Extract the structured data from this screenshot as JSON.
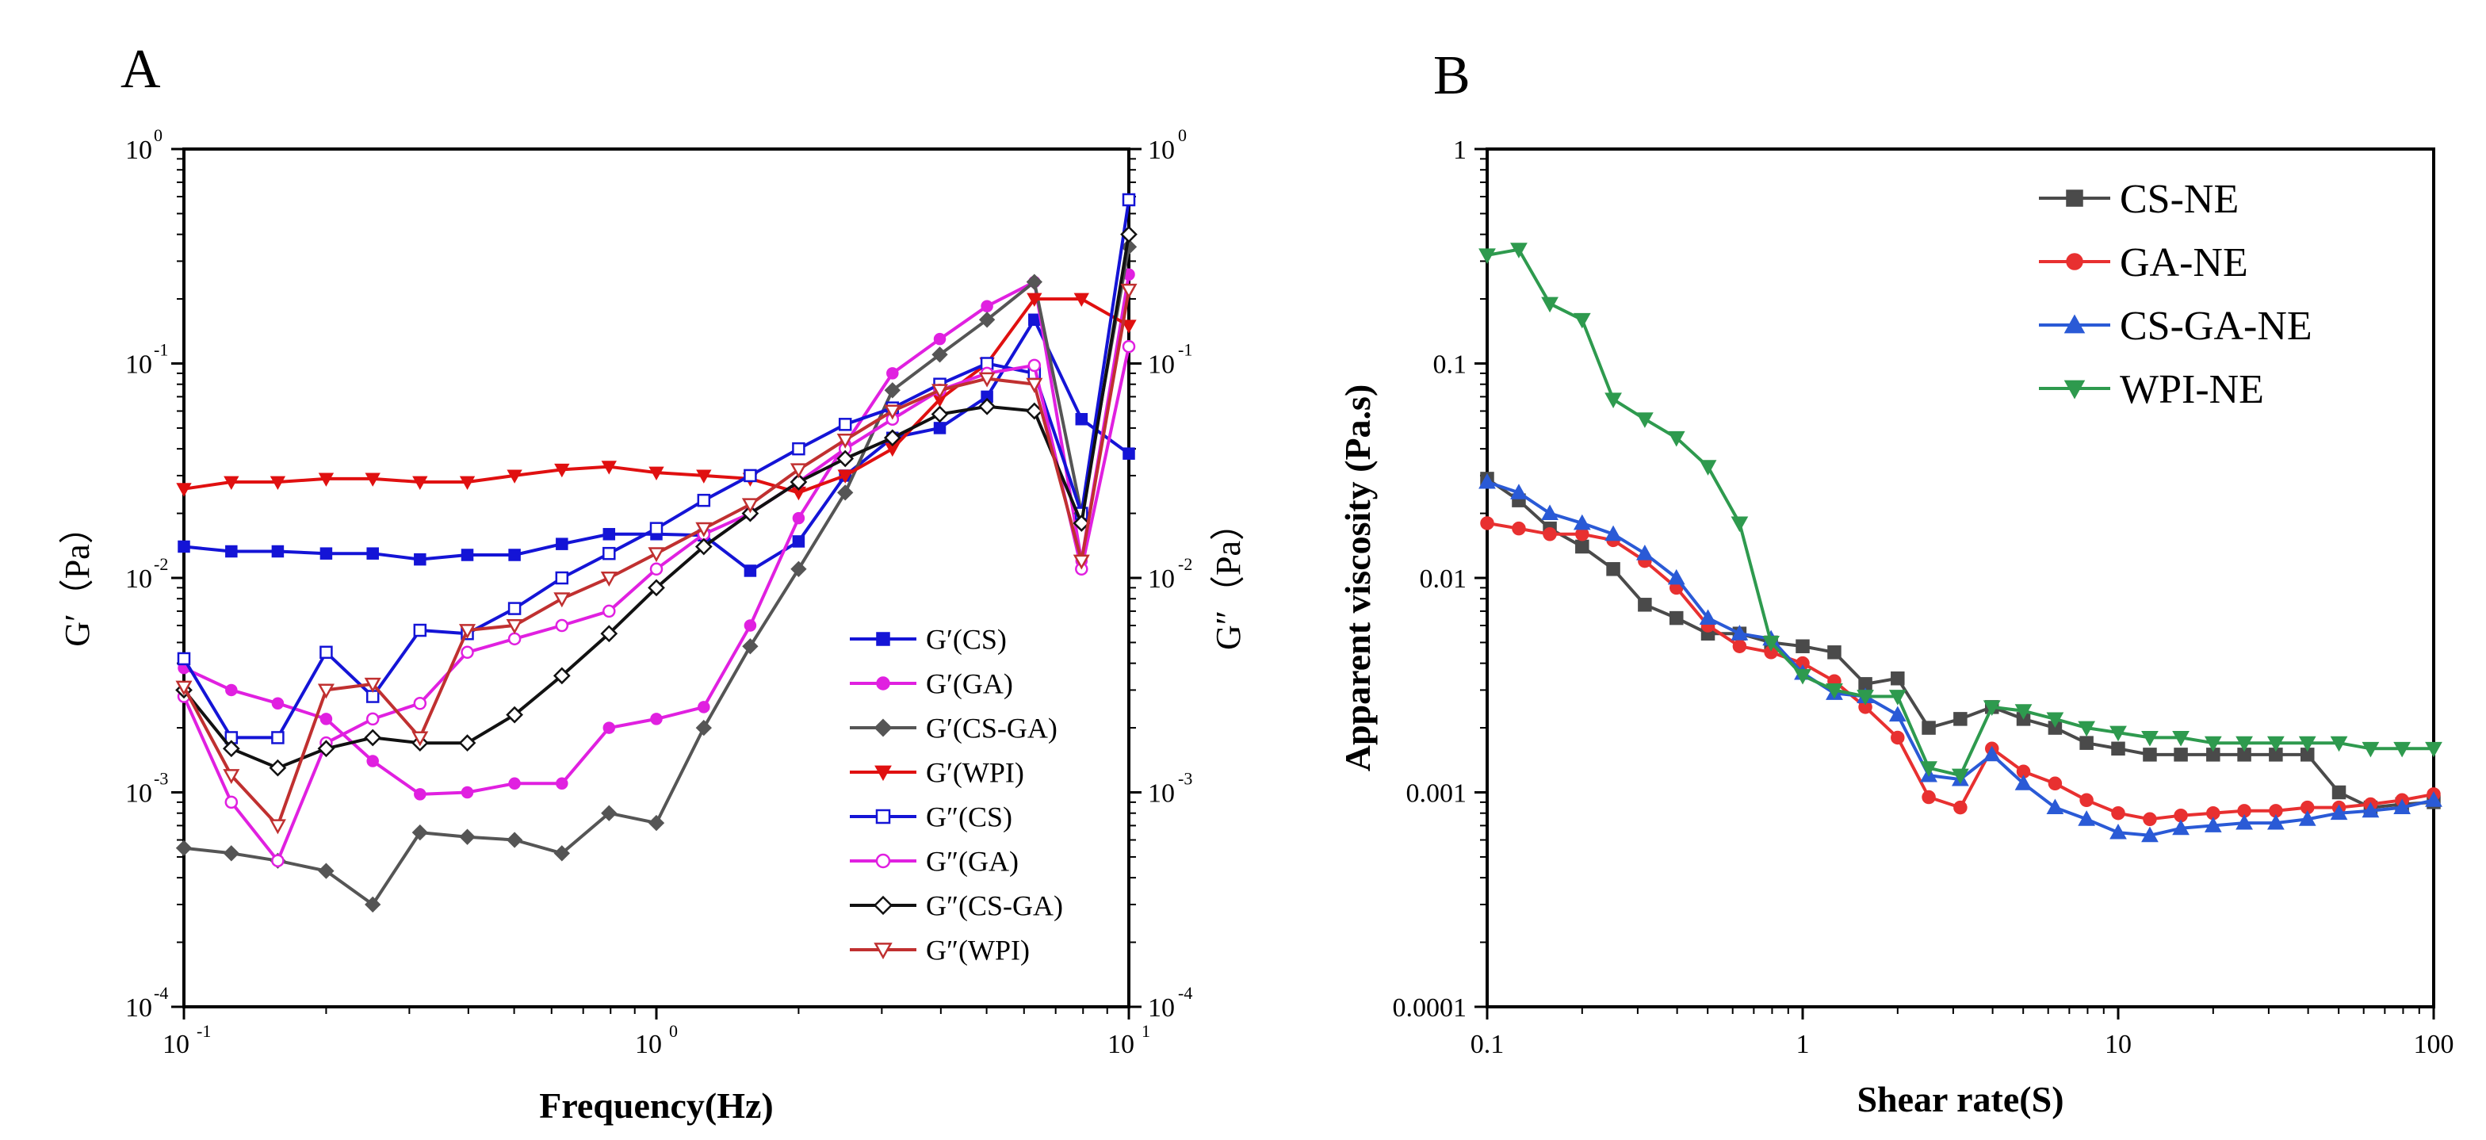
{
  "chart_data": [
    {
      "panel": "A",
      "type": "line",
      "xscale": "log",
      "yscale": "log",
      "xlabel": "Frequency(Hz)",
      "ylabel": "G′（Pa）",
      "ylabel_right": "G″（Pa）",
      "xlim": [
        0.1,
        10
      ],
      "ylim": [
        0.0001,
        1
      ],
      "x_ticks": [
        {
          "base": "10",
          "exp": "-1"
        },
        {
          "base": "10",
          "exp": "0"
        },
        {
          "base": "10",
          "exp": "1"
        }
      ],
      "y_ticks": [
        {
          "base": "10",
          "exp": "-4"
        },
        {
          "base": "10",
          "exp": "-3"
        },
        {
          "base": "10",
          "exp": "-2"
        },
        {
          "base": "10",
          "exp": "-1"
        },
        {
          "base": "10",
          "exp": "0"
        }
      ],
      "legend_position": "bottom-right",
      "series": [
        {
          "name": "G′(CS)",
          "color": "#1414d6",
          "marker": "square",
          "filled": true,
          "x": [
            0.1,
            0.126,
            0.158,
            0.2,
            0.251,
            0.316,
            0.398,
            0.501,
            0.631,
            0.794,
            1.0,
            1.26,
            1.58,
            2.0,
            2.51,
            3.16,
            3.98,
            5.01,
            6.31,
            7.94,
            10.0
          ],
          "y": [
            0.014,
            0.0133,
            0.0133,
            0.013,
            0.013,
            0.0122,
            0.0128,
            0.0128,
            0.0144,
            0.016,
            0.016,
            0.0158,
            0.0108,
            0.0148,
            0.03,
            0.045,
            0.05,
            0.07,
            0.16,
            0.055,
            0.038
          ]
        },
        {
          "name": "G′(GA)",
          "color": "#e020e0",
          "marker": "circle",
          "filled": true,
          "x": [
            0.1,
            0.126,
            0.158,
            0.2,
            0.251,
            0.316,
            0.398,
            0.501,
            0.631,
            0.794,
            1.0,
            1.26,
            1.58,
            2.0,
            2.51,
            3.16,
            3.98,
            5.01,
            6.31,
            7.94,
            10.0
          ],
          "y": [
            0.0038,
            0.003,
            0.0026,
            0.0022,
            0.0014,
            0.00098,
            0.001,
            0.0011,
            0.0011,
            0.002,
            0.0022,
            0.0025,
            0.006,
            0.019,
            0.042,
            0.09,
            0.13,
            0.185,
            0.24,
            0.012,
            0.26
          ]
        },
        {
          "name": "G′(CS-GA)",
          "color": "#555555",
          "marker": "diamond",
          "filled": true,
          "x": [
            0.1,
            0.126,
            0.158,
            0.2,
            0.251,
            0.316,
            0.398,
            0.501,
            0.631,
            0.794,
            1.0,
            1.26,
            1.58,
            2.0,
            2.51,
            3.16,
            3.98,
            5.01,
            6.31,
            7.94,
            10.0
          ],
          "y": [
            0.00055,
            0.00052,
            0.00048,
            0.00043,
            0.0003,
            0.00065,
            0.00062,
            0.0006,
            0.00052,
            0.0008,
            0.00072,
            0.002,
            0.0048,
            0.011,
            0.025,
            0.075,
            0.11,
            0.16,
            0.24,
            0.02,
            0.35
          ]
        },
        {
          "name": "G′(WPI)",
          "color": "#e01010",
          "marker": "triangle-down",
          "filled": true,
          "x": [
            0.1,
            0.126,
            0.158,
            0.2,
            0.251,
            0.316,
            0.398,
            0.501,
            0.631,
            0.794,
            1.0,
            1.26,
            1.58,
            2.0,
            2.51,
            3.16,
            3.98,
            5.01,
            6.31,
            7.94,
            10.0
          ],
          "y": [
            0.026,
            0.028,
            0.028,
            0.029,
            0.029,
            0.028,
            0.028,
            0.03,
            0.032,
            0.033,
            0.031,
            0.03,
            0.029,
            0.025,
            0.03,
            0.04,
            0.068,
            0.1,
            0.2,
            0.2,
            0.15
          ]
        },
        {
          "name": "G″(CS)",
          "color": "#1414d6",
          "marker": "square",
          "filled": false,
          "x": [
            0.1,
            0.126,
            0.158,
            0.2,
            0.251,
            0.316,
            0.398,
            0.501,
            0.631,
            0.794,
            1.0,
            1.26,
            1.58,
            2.0,
            2.51,
            3.16,
            3.98,
            5.01,
            6.31,
            7.94,
            10.0
          ],
          "y": [
            0.0042,
            0.0018,
            0.0018,
            0.0045,
            0.0028,
            0.0057,
            0.0055,
            0.0072,
            0.01,
            0.013,
            0.017,
            0.023,
            0.03,
            0.04,
            0.052,
            0.062,
            0.08,
            0.1,
            0.09,
            0.02,
            0.58
          ]
        },
        {
          "name": "G″(GA)",
          "color": "#e020e0",
          "marker": "circle",
          "filled": false,
          "x": [
            0.1,
            0.126,
            0.158,
            0.2,
            0.251,
            0.316,
            0.398,
            0.501,
            0.631,
            0.794,
            1.0,
            1.26,
            1.58,
            2.0,
            2.51,
            3.16,
            3.98,
            5.01,
            6.31,
            7.94,
            10.0
          ],
          "y": [
            0.0028,
            0.0009,
            0.00048,
            0.0017,
            0.0022,
            0.0026,
            0.0045,
            0.0052,
            0.006,
            0.007,
            0.011,
            0.016,
            0.02,
            0.028,
            0.04,
            0.055,
            0.075,
            0.09,
            0.098,
            0.011,
            0.12
          ]
        },
        {
          "name": "G″(CS-GA)",
          "color": "#111111",
          "marker": "diamond",
          "filled": false,
          "x": [
            0.1,
            0.126,
            0.158,
            0.2,
            0.251,
            0.316,
            0.398,
            0.501,
            0.631,
            0.794,
            1.0,
            1.26,
            1.58,
            2.0,
            2.51,
            3.16,
            3.98,
            5.01,
            6.31,
            7.94,
            10.0
          ],
          "y": [
            0.003,
            0.0016,
            0.0013,
            0.0016,
            0.0018,
            0.0017,
            0.0017,
            0.0023,
            0.0035,
            0.0055,
            0.009,
            0.014,
            0.02,
            0.028,
            0.036,
            0.045,
            0.058,
            0.063,
            0.06,
            0.018,
            0.4
          ]
        },
        {
          "name": "G″(WPI)",
          "color": "#c03030",
          "marker": "triangle-down",
          "filled": false,
          "x": [
            0.1,
            0.126,
            0.158,
            0.2,
            0.251,
            0.316,
            0.398,
            0.501,
            0.631,
            0.794,
            1.0,
            1.26,
            1.58,
            2.0,
            2.51,
            3.16,
            3.98,
            5.01,
            6.31,
            7.94,
            10.0
          ],
          "y": [
            0.0031,
            0.0012,
            0.0007,
            0.003,
            0.0032,
            0.0018,
            0.0057,
            0.006,
            0.008,
            0.01,
            0.013,
            0.017,
            0.022,
            0.032,
            0.044,
            0.06,
            0.075,
            0.085,
            0.08,
            0.012,
            0.22
          ]
        }
      ]
    },
    {
      "panel": "B",
      "type": "line",
      "xscale": "log",
      "yscale": "log",
      "xlabel": "Shear rate(S)",
      "ylabel": "Apparent viscosity (Pa.s)",
      "xlim": [
        0.1,
        100
      ],
      "ylim": [
        0.0001,
        1
      ],
      "x_ticks": [
        "0.1",
        "1",
        "10",
        "100"
      ],
      "y_ticks": [
        "0.0001",
        "0.001",
        "0.01",
        "0.1",
        "1"
      ],
      "legend_position": "top-right",
      "series": [
        {
          "name": "CS-NE",
          "color": "#4a4a4a",
          "marker": "square",
          "x": [
            0.1,
            0.126,
            0.158,
            0.2,
            0.251,
            0.316,
            0.398,
            0.501,
            0.631,
            0.794,
            1.0,
            1.26,
            1.58,
            2.0,
            2.51,
            3.16,
            3.98,
            5.01,
            6.31,
            7.94,
            10.0,
            12.6,
            15.8,
            20.0,
            25.1,
            31.6,
            39.8,
            50.1,
            63.1,
            79.4,
            100
          ],
          "y": [
            0.029,
            0.023,
            0.017,
            0.014,
            0.011,
            0.0075,
            0.0065,
            0.0055,
            0.0055,
            0.005,
            0.0048,
            0.0045,
            0.0032,
            0.0034,
            0.002,
            0.0022,
            0.0025,
            0.0022,
            0.002,
            0.0017,
            0.0016,
            0.0015,
            0.0015,
            0.0015,
            0.0015,
            0.0015,
            0.0015,
            0.001,
            0.00085,
            0.00088,
            0.0009
          ]
        },
        {
          "name": "GA-NE",
          "color": "#e83030",
          "marker": "circle",
          "x": [
            0.1,
            0.126,
            0.158,
            0.2,
            0.251,
            0.316,
            0.398,
            0.501,
            0.631,
            0.794,
            1.0,
            1.26,
            1.58,
            2.0,
            2.51,
            3.16,
            3.98,
            5.01,
            6.31,
            7.94,
            10.0,
            12.6,
            15.8,
            20.0,
            25.1,
            31.6,
            39.8,
            50.1,
            63.1,
            79.4,
            100
          ],
          "y": [
            0.018,
            0.017,
            0.016,
            0.016,
            0.015,
            0.012,
            0.009,
            0.006,
            0.0048,
            0.0045,
            0.004,
            0.0033,
            0.0025,
            0.0018,
            0.00095,
            0.00085,
            0.0016,
            0.00125,
            0.0011,
            0.00092,
            0.0008,
            0.00075,
            0.00078,
            0.0008,
            0.00082,
            0.00082,
            0.00085,
            0.00085,
            0.00088,
            0.00092,
            0.00098
          ]
        },
        {
          "name": "CS-GA-NE",
          "color": "#2a5ad6",
          "marker": "triangle-up",
          "x": [
            0.1,
            0.126,
            0.158,
            0.2,
            0.251,
            0.316,
            0.398,
            0.501,
            0.631,
            0.794,
            1.0,
            1.26,
            1.58,
            2.0,
            2.51,
            3.16,
            3.98,
            5.01,
            6.31,
            7.94,
            10.0,
            12.6,
            15.8,
            20.0,
            25.1,
            31.6,
            39.8,
            50.1,
            63.1,
            79.4,
            100
          ],
          "y": [
            0.028,
            0.025,
            0.02,
            0.018,
            0.016,
            0.013,
            0.01,
            0.0065,
            0.0055,
            0.0052,
            0.0036,
            0.0029,
            0.0028,
            0.0023,
            0.0012,
            0.00115,
            0.0015,
            0.0011,
            0.00085,
            0.00075,
            0.00065,
            0.00063,
            0.00068,
            0.0007,
            0.00072,
            0.00072,
            0.00075,
            0.0008,
            0.00082,
            0.00085,
            0.00092
          ]
        },
        {
          "name": "WPI-NE",
          "color": "#2e9a4e",
          "marker": "triangle-down",
          "x": [
            0.1,
            0.126,
            0.158,
            0.2,
            0.251,
            0.316,
            0.398,
            0.501,
            0.631,
            0.794,
            1.0,
            1.26,
            1.58,
            2.0,
            2.51,
            3.16,
            3.98,
            5.01,
            6.31,
            7.94,
            10.0,
            12.6,
            15.8,
            20.0,
            25.1,
            31.6,
            39.8,
            50.1,
            63.1,
            79.4,
            100
          ],
          "y": [
            0.32,
            0.34,
            0.19,
            0.16,
            0.068,
            0.055,
            0.045,
            0.033,
            0.018,
            0.005,
            0.0035,
            0.003,
            0.0028,
            0.0028,
            0.0013,
            0.0012,
            0.0025,
            0.0024,
            0.0022,
            0.002,
            0.0019,
            0.0018,
            0.0018,
            0.0017,
            0.0017,
            0.0017,
            0.0017,
            0.0017,
            0.0016,
            0.0016,
            0.0016
          ]
        }
      ]
    }
  ]
}
